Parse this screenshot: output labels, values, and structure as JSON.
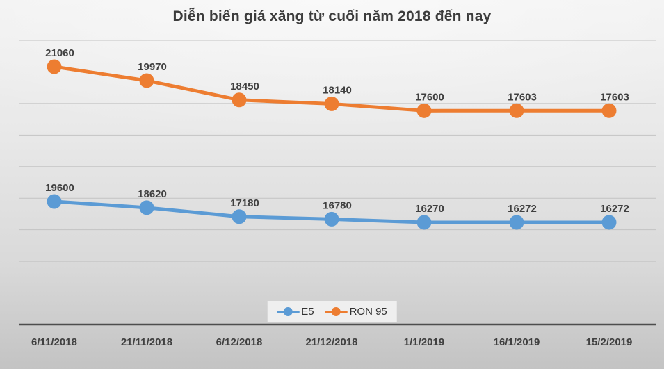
{
  "title": "Diễn biến giá xăng từ cuối năm 2018 đến nay",
  "chart_data": {
    "type": "line",
    "title": "Diễn biến giá xăng từ cuối năm 2018 đến nay",
    "categories": [
      "6/11/2018",
      "21/11/2018",
      "6/12/2018",
      "21/12/2018",
      "1/1/2019",
      "16/1/2019",
      "15/2/2019"
    ],
    "series": [
      {
        "name": "E5",
        "color": "#5B9BD5",
        "values": [
          19600,
          18620,
          17180,
          16780,
          16270,
          16272,
          16272
        ]
      },
      {
        "name": "RON 95",
        "color": "#ED7D31",
        "values": [
          21060,
          19970,
          18450,
          18140,
          17600,
          17603,
          17603
        ]
      }
    ],
    "data_labels": true,
    "grid": true,
    "y_axis_visible": false,
    "legend_position": "bottom-center",
    "label_color": "#404040",
    "axis_label_color": "#404040",
    "gridline_color": "#c3c3c3",
    "axis_line_color": "#4d4d4d"
  }
}
